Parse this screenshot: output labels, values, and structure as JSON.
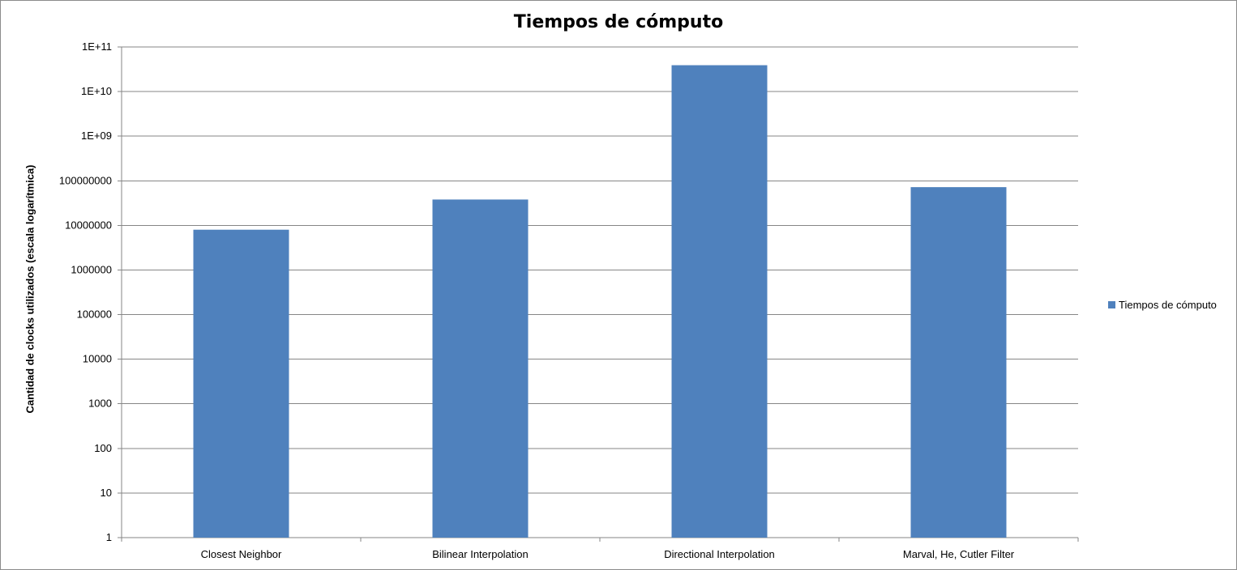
{
  "chart_data": {
    "type": "bar",
    "title": "Tiempos de cómputo",
    "xlabel": "",
    "ylabel": "Cantidad de clocks utilizados (escala logarítmica)",
    "y_scale": "log",
    "ylim": [
      1,
      100000000000
    ],
    "y_tick_labels": [
      "1",
      "10",
      "100",
      "1000",
      "10000",
      "100000",
      "1000000",
      "10000000",
      "100000000",
      "1E+09",
      "1E+10",
      "1E+11"
    ],
    "categories": [
      "Closest Neighbor",
      "Bilinear Interpolation",
      "Directional Interpolation",
      "Marval, He, Cutler Filter"
    ],
    "series": [
      {
        "name": "Tiempos de cómputo",
        "color": "#4f81bd",
        "values": [
          8000000,
          38000000,
          39000000000,
          72000000
        ]
      }
    ],
    "grid": true,
    "legend_position": "right"
  }
}
